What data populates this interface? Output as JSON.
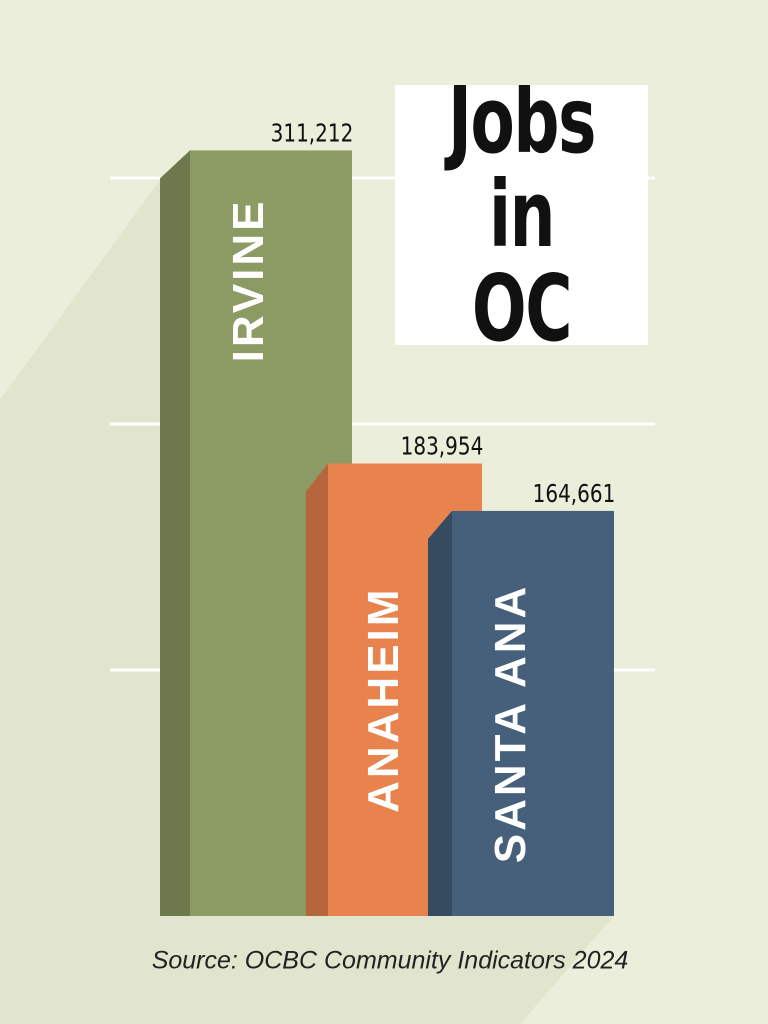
{
  "chart_data": {
    "type": "bar",
    "title": "Jobs in OC",
    "categories": [
      "IRVINE",
      "ANAHEIM",
      "SANTA ANA"
    ],
    "values": [
      311212,
      183954,
      164661
    ],
    "value_labels": [
      "311,212",
      "183,954",
      "164,661"
    ],
    "colors": [
      "#8c9b63",
      "#e9834e",
      "#46607b"
    ],
    "ylim": [
      0,
      350000
    ],
    "yticks": [
      100000,
      200000,
      300000
    ],
    "grid": true,
    "source": "Source: OCBC Community Indicators 2024"
  }
}
